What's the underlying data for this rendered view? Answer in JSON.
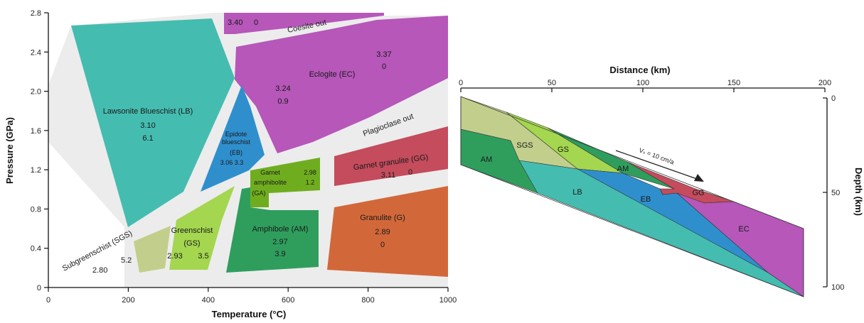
{
  "left_panel": {
    "x_axis": {
      "title": "Temperature (°C)",
      "ticks": [
        "0",
        "200",
        "400",
        "600",
        "800",
        "1000"
      ]
    },
    "y_axis": {
      "title": "Pressure (GPa)",
      "ticks": [
        "0",
        "0.4",
        "0.8",
        "1.2",
        "1.6",
        "2.0",
        "2.4",
        "2.8"
      ]
    },
    "facies": [
      {
        "key": "top_purple",
        "color": "#b657b9",
        "lines": [
          "3.40",
          "0"
        ]
      },
      {
        "key": "lb",
        "color": "#45bcb0",
        "lines": [
          "Lawsonite Blueschist (LB)",
          "3.10",
          "6.1"
        ]
      },
      {
        "key": "ec",
        "color": "#b657b9",
        "lines": [
          "Eclogite (EC)"
        ],
        "values_a": [
          "3.37",
          "0"
        ],
        "values_b": [
          "3.24",
          "0.9"
        ]
      },
      {
        "key": "eb",
        "color": "#2f8fcd",
        "lines": [
          "Epidote",
          "blueschist",
          "(EB)",
          "3.06   3.3"
        ]
      },
      {
        "key": "gg",
        "color": "#c44c5c",
        "lines": [
          "Garnet granulite (GG)",
          "3.11",
          "0"
        ]
      },
      {
        "key": "ga",
        "color": "#6fad1f",
        "lines": [
          "Garnet",
          "amphibolite",
          "(GA)"
        ],
        "values": [
          "2.98",
          "1.2"
        ]
      },
      {
        "key": "gs",
        "color": "#a4d64f",
        "lines": [
          "Greenschist",
          "(GS)",
          "2.93",
          "3.5"
        ]
      },
      {
        "key": "am",
        "color": "#2f9e5d",
        "lines": [
          "Amphibole (AM)",
          "2.97",
          "3.9"
        ]
      },
      {
        "key": "gr",
        "color": "#d2683a",
        "lines": [
          "Granulite (G)",
          "2.89",
          "0"
        ]
      },
      {
        "key": "sgs",
        "color": "#c2cf8c",
        "lines": [
          "Subgreenschist (SGS)",
          "2.80",
          "5.2"
        ]
      }
    ],
    "boundaries": [
      "Coesite out",
      "Plagioclase out"
    ]
  },
  "right_panel": {
    "x_axis": {
      "title": "Distance (km)",
      "ticks": [
        "0",
        "50",
        "100",
        "150",
        "200"
      ]
    },
    "y_axis": {
      "title": "Depth (km)",
      "ticks": [
        "0",
        "50",
        "100"
      ]
    },
    "zones": [
      "AM",
      "SGS",
      "GS",
      "AM",
      "LB",
      "EB",
      "GG",
      "EC"
    ],
    "velocity_label": "Vₛ = 10 cm/a"
  },
  "colors": {
    "lb": "#45bcb0",
    "ec": "#b657b9",
    "eb": "#2f8fcd",
    "gg": "#c44c5c",
    "ga": "#6fad1f",
    "gs": "#a4d64f",
    "am": "#2f9e5d",
    "gr": "#d2683a",
    "sgs": "#c2cf8c",
    "band": "#e6e6e6"
  }
}
